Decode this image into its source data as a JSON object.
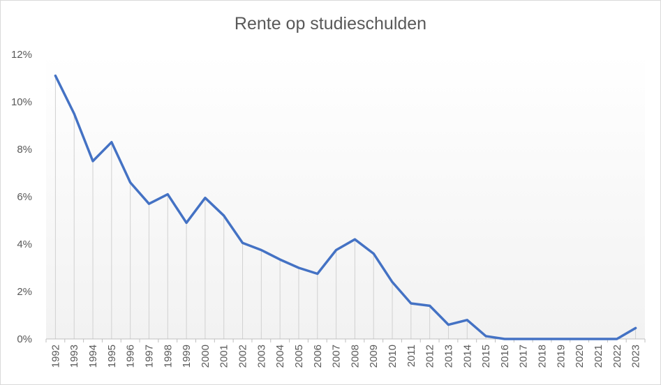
{
  "chart_data": {
    "type": "line",
    "title": "Rente op studieschulden",
    "xlabel": "",
    "ylabel": "",
    "ylim": [
      0,
      12
    ],
    "y_ticks": [
      0,
      2,
      4,
      6,
      8,
      10,
      12
    ],
    "y_tick_labels": [
      "0%",
      "2%",
      "4%",
      "6%",
      "8%",
      "10%",
      "12%"
    ],
    "categories": [
      "1992",
      "1993",
      "1994",
      "1995",
      "1996",
      "1997",
      "1998",
      "1999",
      "2000",
      "2001",
      "2002",
      "2003",
      "2004",
      "2005",
      "2006",
      "2007",
      "2008",
      "2009",
      "2010",
      "2011",
      "2012",
      "2013",
      "2014",
      "2015",
      "2016",
      "2017",
      "2018",
      "2019",
      "2020",
      "2021",
      "2022",
      "2023"
    ],
    "series": [
      {
        "values": [
          11.1,
          9.5,
          7.5,
          8.3,
          6.6,
          5.7,
          6.1,
          4.9,
          5.95,
          5.2,
          4.05,
          3.75,
          3.35,
          3.0,
          2.75,
          3.75,
          4.2,
          3.6,
          2.4,
          1.5,
          1.4,
          0.6,
          0.8,
          0.12,
          0.0,
          0.0,
          0.0,
          0.0,
          0.0,
          0.0,
          0.0,
          0.46
        ],
        "color": "#4472c4"
      }
    ],
    "drop_lines": true,
    "grid": false,
    "background_gradient": [
      "#ffffff",
      "#f2f2f2"
    ]
  }
}
